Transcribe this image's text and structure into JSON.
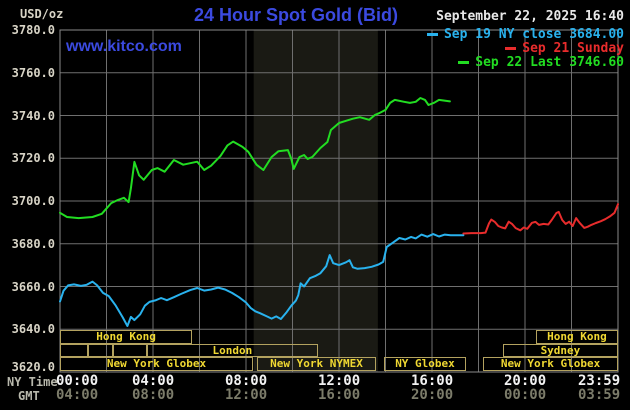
{
  "header": {
    "unit_label": "USD/oz",
    "title": "24 Hour Spot Gold (Bid)",
    "datetime": "September 22, 2025 16:40",
    "watermark": "www.kitco.com"
  },
  "colors": {
    "title_blue": "#3b4ae0",
    "cyan": "#29b2ee",
    "red": "#e82c2c",
    "green": "#22dd22",
    "grid": "#6f6f6f",
    "border": "#8a8a8a",
    "band": "#1a1a14",
    "axis_label": "#d8d4c6",
    "ny_tick": "#f2f2f2",
    "gmt_tick": "#7c7c6a",
    "session_border": "#b3a25f",
    "session_text": "#f0d832"
  },
  "legend": [
    {
      "label": "Sep 19 NY close 3684.00",
      "color_key": "cyan"
    },
    {
      "label": "Sep 21 Sunday",
      "color_key": "red"
    },
    {
      "label": "Sep 22 Last 3746.60",
      "color_key": "green"
    }
  ],
  "axes": {
    "y_ticks": [
      "3780.0",
      "3760.0",
      "3740.0",
      "3720.0",
      "3700.0",
      "3680.0",
      "3660.0",
      "3640.0",
      "3620.0"
    ],
    "y_min": 3620,
    "y_max": 3780,
    "x_row1_label": "NY Time",
    "x_row2_label": "GMT",
    "ny_ticks": [
      "00:00",
      "04:00",
      "08:00",
      "12:00",
      "16:00",
      "20:00",
      "23:59"
    ],
    "gmt_ticks": [
      "04:00",
      "08:00",
      "12:00",
      "16:00",
      "20:00",
      "00:00",
      "03:59"
    ],
    "tick_hours": [
      0,
      4,
      8,
      12,
      16,
      20,
      24
    ]
  },
  "sessions": {
    "rows": [
      {
        "boxes": [
          {
            "label": "Hong Kong",
            "start": 0,
            "end": 5.68
          },
          {
            "label": "Hong Kong",
            "start": 20.47,
            "end": 24
          }
        ]
      },
      {
        "boxes": [
          {
            "label": "",
            "start": 0,
            "end": 1.22
          },
          {
            "label": "",
            "start": 1.22,
            "end": 2.29
          },
          {
            "label": "",
            "start": 2.29,
            "end": 3.73
          },
          {
            "label": "London",
            "start": 3.73,
            "end": 11.1
          },
          {
            "label": "Sydney",
            "start": 19.05,
            "end": 24
          }
        ]
      },
      {
        "boxes": [
          {
            "label": "New York Globex",
            "start": 0,
            "end": 8.3
          },
          {
            "label": "New York NYMEX",
            "start": 8.47,
            "end": 13.6
          },
          {
            "label": "NY Globex",
            "start": 13.94,
            "end": 17.46
          },
          {
            "label": "New York Globex",
            "start": 18.2,
            "end": 24
          }
        ]
      }
    ]
  },
  "chart_data": {
    "type": "line",
    "title": "24 Hour Spot Gold (Bid)",
    "xlabel": "NY Time (hours 0-24)",
    "ylabel": "USD/oz",
    "ylim": [
      3620,
      3780
    ],
    "grid": true,
    "legend_position": "top-right",
    "nymex_band_hours": [
      8.33,
      13.67
    ],
    "series": [
      {
        "name": "Sep 19 NY close 3684.00",
        "color_key": "cyan",
        "points": [
          [
            0,
            3653
          ],
          [
            0.15,
            3658
          ],
          [
            0.35,
            3660.5
          ],
          [
            0.6,
            3661
          ],
          [
            0.9,
            3660.3
          ],
          [
            1.15,
            3660.8
          ],
          [
            1.4,
            3662.3
          ],
          [
            1.6,
            3660.5
          ],
          [
            1.85,
            3657
          ],
          [
            2.1,
            3655.5
          ],
          [
            2.4,
            3651
          ],
          [
            2.7,
            3645.5
          ],
          [
            2.9,
            3641.5
          ],
          [
            3.05,
            3645.8
          ],
          [
            3.2,
            3644.3
          ],
          [
            3.45,
            3647
          ],
          [
            3.65,
            3651
          ],
          [
            3.85,
            3652.8
          ],
          [
            4.1,
            3653.5
          ],
          [
            4.35,
            3654.6
          ],
          [
            4.6,
            3653.6
          ],
          [
            4.9,
            3655
          ],
          [
            5.2,
            3656.5
          ],
          [
            5.6,
            3658.3
          ],
          [
            5.9,
            3659.3
          ],
          [
            6.2,
            3658.1
          ],
          [
            6.5,
            3658.6
          ],
          [
            6.8,
            3659.5
          ],
          [
            7.1,
            3658.6
          ],
          [
            7.4,
            3657
          ],
          [
            7.7,
            3655
          ],
          [
            8.0,
            3652.5
          ],
          [
            8.2,
            3650
          ],
          [
            8.4,
            3648.4
          ],
          [
            8.6,
            3647.5
          ],
          [
            8.9,
            3646
          ],
          [
            9.1,
            3645
          ],
          [
            9.3,
            3646
          ],
          [
            9.5,
            3644.8
          ],
          [
            9.75,
            3648
          ],
          [
            9.95,
            3651
          ],
          [
            10.15,
            3653.5
          ],
          [
            10.25,
            3656
          ],
          [
            10.35,
            3661.5
          ],
          [
            10.5,
            3660
          ],
          [
            10.75,
            3663.9
          ],
          [
            11.0,
            3665
          ],
          [
            11.2,
            3666.2
          ],
          [
            11.45,
            3669.5
          ],
          [
            11.6,
            3674.7
          ],
          [
            11.75,
            3670.9
          ],
          [
            12.0,
            3670
          ],
          [
            12.3,
            3671.3
          ],
          [
            12.45,
            3672.3
          ],
          [
            12.6,
            3669
          ],
          [
            12.8,
            3668.3
          ],
          [
            13.1,
            3668.6
          ],
          [
            13.4,
            3669.2
          ],
          [
            13.7,
            3670.3
          ],
          [
            13.9,
            3671.5
          ],
          [
            14.05,
            3678.5
          ],
          [
            14.3,
            3680.4
          ],
          [
            14.6,
            3682.7
          ],
          [
            14.85,
            3682
          ],
          [
            15.1,
            3683.2
          ],
          [
            15.3,
            3682.5
          ],
          [
            15.55,
            3684.3
          ],
          [
            15.8,
            3683.3
          ],
          [
            16.05,
            3684.5
          ],
          [
            16.3,
            3683.4
          ],
          [
            16.55,
            3684.3
          ],
          [
            16.8,
            3684
          ],
          [
            17.1,
            3684
          ],
          [
            17.35,
            3684
          ]
        ]
      },
      {
        "name": "Sep 21 Sunday",
        "color_key": "red",
        "points": [
          [
            17.35,
            3684.8
          ],
          [
            17.7,
            3685
          ],
          [
            18.1,
            3685
          ],
          [
            18.3,
            3685.2
          ],
          [
            18.45,
            3689.5
          ],
          [
            18.55,
            3691.3
          ],
          [
            18.7,
            3690.2
          ],
          [
            18.85,
            3688.3
          ],
          [
            19.0,
            3687.6
          ],
          [
            19.15,
            3687.2
          ],
          [
            19.3,
            3690.3
          ],
          [
            19.45,
            3689.2
          ],
          [
            19.6,
            3687.3
          ],
          [
            19.8,
            3686.3
          ],
          [
            19.95,
            3687.6
          ],
          [
            20.1,
            3687
          ],
          [
            20.3,
            3689.8
          ],
          [
            20.45,
            3690.2
          ],
          [
            20.6,
            3688.8
          ],
          [
            20.8,
            3689.3
          ],
          [
            21.0,
            3689
          ],
          [
            21.15,
            3691.1
          ],
          [
            21.35,
            3694.4
          ],
          [
            21.45,
            3694.9
          ],
          [
            21.6,
            3691.1
          ],
          [
            21.75,
            3689.3
          ],
          [
            21.9,
            3690.3
          ],
          [
            22.05,
            3688.3
          ],
          [
            22.2,
            3692
          ],
          [
            22.35,
            3689.8
          ],
          [
            22.55,
            3687.4
          ],
          [
            22.7,
            3688
          ],
          [
            22.85,
            3688.8
          ],
          [
            23.05,
            3689.7
          ],
          [
            23.25,
            3690.5
          ],
          [
            23.45,
            3691.5
          ],
          [
            23.65,
            3692.8
          ],
          [
            23.85,
            3694.5
          ],
          [
            24.0,
            3698.5
          ]
        ]
      },
      {
        "name": "Sep 22 Last 3746.60",
        "color_key": "green",
        "points": [
          [
            0,
            3694.5
          ],
          [
            0.3,
            3692.5
          ],
          [
            0.8,
            3692
          ],
          [
            1.4,
            3692.5
          ],
          [
            1.8,
            3694
          ],
          [
            2.2,
            3699
          ],
          [
            2.5,
            3700.5
          ],
          [
            2.75,
            3701.5
          ],
          [
            2.95,
            3699.5
          ],
          [
            3.05,
            3706
          ],
          [
            3.2,
            3718.3
          ],
          [
            3.4,
            3712
          ],
          [
            3.6,
            3709.9
          ],
          [
            3.95,
            3714.5
          ],
          [
            4.2,
            3715.4
          ],
          [
            4.5,
            3713.7
          ],
          [
            4.9,
            3719.2
          ],
          [
            5.3,
            3717
          ],
          [
            5.9,
            3718.4
          ],
          [
            6.2,
            3714.5
          ],
          [
            6.5,
            3716.5
          ],
          [
            6.9,
            3721
          ],
          [
            7.2,
            3726
          ],
          [
            7.45,
            3727.8
          ],
          [
            7.85,
            3725.3
          ],
          [
            8.1,
            3723
          ],
          [
            8.45,
            3717
          ],
          [
            8.75,
            3714.5
          ],
          [
            9.1,
            3720.6
          ],
          [
            9.4,
            3723.3
          ],
          [
            9.8,
            3723.8
          ],
          [
            9.95,
            3719.7
          ],
          [
            10.05,
            3715
          ],
          [
            10.3,
            3720.6
          ],
          [
            10.5,
            3721.5
          ],
          [
            10.65,
            3719.7
          ],
          [
            10.85,
            3720.6
          ],
          [
            11.2,
            3724.8
          ],
          [
            11.5,
            3727.6
          ],
          [
            11.65,
            3733.2
          ],
          [
            11.8,
            3734.6
          ],
          [
            12.0,
            3736.5
          ],
          [
            12.3,
            3737.5
          ],
          [
            12.6,
            3738.5
          ],
          [
            12.9,
            3739.2
          ],
          [
            13.3,
            3738
          ],
          [
            13.55,
            3740.3
          ],
          [
            13.75,
            3741.2
          ],
          [
            14.0,
            3742.6
          ],
          [
            14.2,
            3745.9
          ],
          [
            14.4,
            3747.3
          ],
          [
            14.8,
            3746.4
          ],
          [
            15.05,
            3745.9
          ],
          [
            15.3,
            3746.4
          ],
          [
            15.5,
            3748.2
          ],
          [
            15.7,
            3747.3
          ],
          [
            15.85,
            3744.9
          ],
          [
            16.1,
            3746
          ],
          [
            16.3,
            3747.3
          ],
          [
            16.77,
            3746.6
          ]
        ]
      }
    ]
  }
}
